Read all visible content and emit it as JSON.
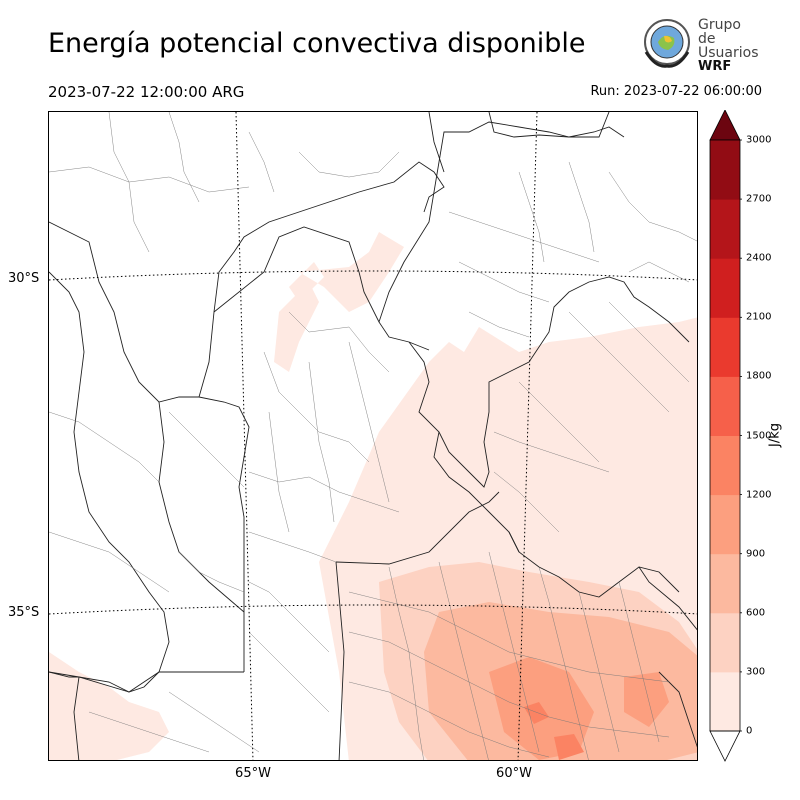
{
  "header": {
    "title": "Energía potencial convectiva disponible",
    "valid_time": "2023-07-22 12:00:00 ARG",
    "run_time": "Run: 2023-07-22 06:00:00"
  },
  "logo": {
    "line1": "Grupo de",
    "line2": "Usuarios",
    "line3": "WRF"
  },
  "map": {
    "lat_labels": [
      "30°S",
      "35°S"
    ],
    "lon_labels": [
      "65°W",
      "60°W"
    ]
  },
  "colorbar": {
    "unit": "J/kg",
    "ticks": [
      "0",
      "300",
      "600",
      "900",
      "1200",
      "1500",
      "1800",
      "2100",
      "2400",
      "2700",
      "3000"
    ],
    "colors": [
      "#fee9e2",
      "#fdd2c2",
      "#fcb99f",
      "#fc9f7f",
      "#fb8363",
      "#f6604a",
      "#ea3a2e",
      "#d01f1f",
      "#b4151a",
      "#920c14",
      "#6c0510"
    ]
  }
}
